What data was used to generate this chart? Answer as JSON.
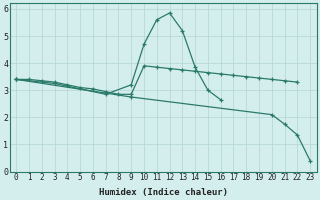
{
  "xlabel": "Humidex (Indice chaleur)",
  "background_color": "#d4eeee",
  "grid_color": "#b8d8d8",
  "line_color": "#2a7a6a",
  "xlim": [
    -0.5,
    23.5
  ],
  "ylim": [
    0,
    6.2
  ],
  "yticks": [
    0,
    1,
    2,
    3,
    4,
    5,
    6
  ],
  "xticks": [
    0,
    1,
    2,
    3,
    4,
    5,
    6,
    7,
    8,
    9,
    10,
    11,
    12,
    13,
    14,
    15,
    16,
    17,
    18,
    19,
    20,
    21,
    22,
    23
  ],
  "curve1_x": [
    0,
    1,
    2,
    3,
    4,
    5,
    6,
    7,
    8,
    9,
    10,
    11,
    12,
    13,
    14,
    15,
    16,
    17,
    18,
    19,
    20,
    21,
    22
  ],
  "curve1_y": [
    3.4,
    3.4,
    3.35,
    3.3,
    3.2,
    3.1,
    3.05,
    2.95,
    2.85,
    2.85,
    3.9,
    3.85,
    3.8,
    3.75,
    3.7,
    3.65,
    3.6,
    3.55,
    3.5,
    3.45,
    3.4,
    3.35,
    3.3
  ],
  "curve2_x": [
    0,
    3,
    7,
    9,
    10,
    11,
    12,
    13,
    14,
    15,
    16
  ],
  "curve2_y": [
    3.4,
    3.25,
    2.85,
    3.2,
    4.7,
    5.6,
    5.85,
    5.2,
    3.85,
    3.0,
    2.65
  ],
  "curve3_x": [
    0,
    9,
    20,
    21,
    22,
    23
  ],
  "curve3_y": [
    3.4,
    2.75,
    2.1,
    1.75,
    1.35,
    0.4
  ]
}
